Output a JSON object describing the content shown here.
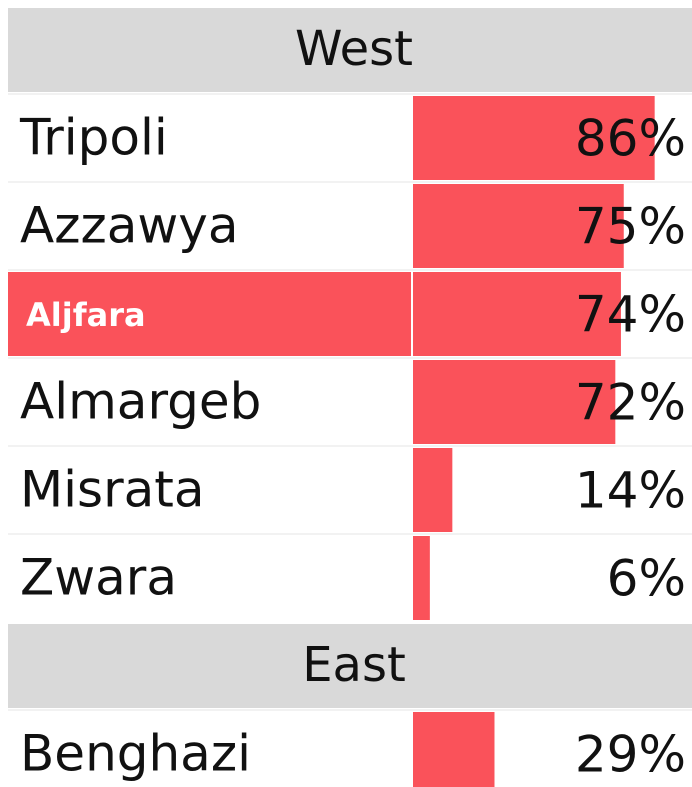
{
  "chart_data": {
    "type": "bar",
    "groups": [
      {
        "name": "West",
        "categories": [
          "Tripoli",
          "Azzawya",
          "Aljfara",
          "Almargeb",
          "Misrata",
          "Zwara"
        ],
        "values": [
          86,
          75,
          74,
          72,
          14,
          6
        ],
        "value_labels": [
          "86%",
          "75%",
          "74%",
          "72%",
          "14%",
          "6%"
        ]
      },
      {
        "name": "East",
        "categories": [
          "Benghazi"
        ],
        "values": [
          29
        ],
        "value_labels": [
          "29%"
        ]
      }
    ],
    "xlim": [
      0,
      100
    ],
    "color": "#fa525a",
    "highlight": {
      "group": 0,
      "index": 2
    }
  }
}
